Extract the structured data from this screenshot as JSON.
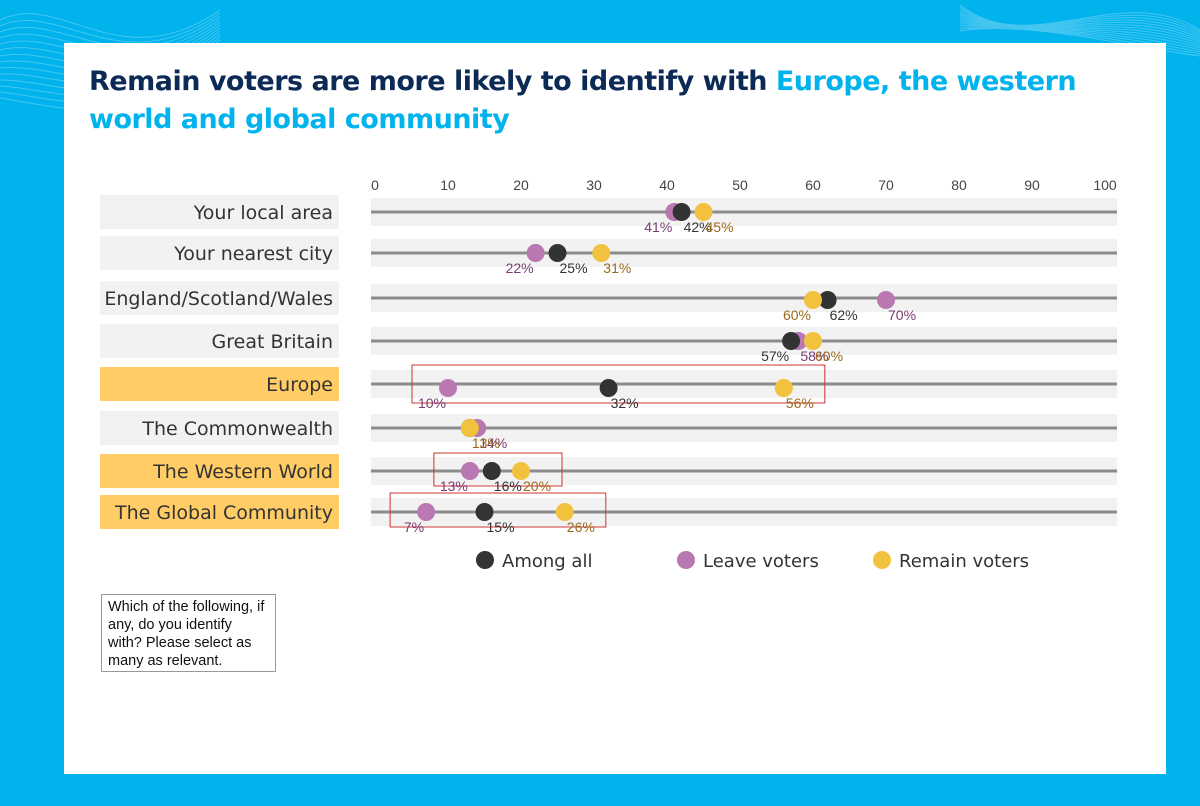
{
  "title": {
    "part1": "Remain voters are more likely to identify with ",
    "part2": "Europe, the western world and global community"
  },
  "note": "Which of the following, if any, do you identify with? Please select as many as relevant.",
  "colors": {
    "background": "#00b3ec",
    "title_dark": "#0c2a56",
    "title_accent": "#00b3ec",
    "among_all": "#333333",
    "leave": "#b978b1",
    "remain": "#f2c13d",
    "category_highlight": "#ffcc66",
    "category_default": "#f2f2f2",
    "box": "#cc3333"
  },
  "chart_data": {
    "type": "scatter",
    "xlim": [
      0,
      100
    ],
    "xticks": [
      "0",
      "10",
      "20",
      "30",
      "40",
      "50",
      "60",
      "70",
      "80",
      "90",
      "100"
    ],
    "grid": false,
    "legend_position": "bottom",
    "categories": [
      "Your local area",
      "Your nearest city",
      "England/Scotland/Wales",
      "Great Britain",
      "Europe",
      "The Commonwealth",
      "The Western World",
      "The Global Community"
    ],
    "highlighted_categories": [
      "Europe",
      "The Western World",
      "The Global Community"
    ],
    "series": [
      {
        "name": "Among all",
        "color": "#333333",
        "values": [
          42,
          25,
          62,
          57,
          32,
          13,
          16,
          15
        ]
      },
      {
        "name": "Leave voters",
        "color": "#b978b1",
        "values": [
          41,
          22,
          70,
          58,
          10,
          14,
          13,
          7
        ]
      },
      {
        "name": "Remain voters",
        "color": "#f2c13d",
        "values": [
          45,
          31,
          60,
          60,
          56,
          13,
          20,
          26
        ]
      }
    ],
    "point_labels": [
      {
        "category": "Your local area",
        "among_all": "42%",
        "leave": "41%",
        "remain": "45%"
      },
      {
        "category": "Your nearest city",
        "among_all": "25%",
        "leave": "22%",
        "remain": "31%"
      },
      {
        "category": "England/Scotland/Wales",
        "among_all": "62%",
        "leave": "70%",
        "remain": "60%"
      },
      {
        "category": "Great Britain",
        "among_all": "57%",
        "leave": "58%",
        "remain": "60%"
      },
      {
        "category": "Europe",
        "among_all": "32%",
        "leave": "10%",
        "remain": "56%"
      },
      {
        "category": "The Commonwealth",
        "among_all": "",
        "leave": "14%",
        "remain": "13%"
      },
      {
        "category": "The Western World",
        "among_all": "16%",
        "leave": "13%",
        "remain": "20%"
      },
      {
        "category": "The Global Community",
        "among_all": "15%",
        "leave": "7%",
        "remain": "26%"
      }
    ]
  }
}
